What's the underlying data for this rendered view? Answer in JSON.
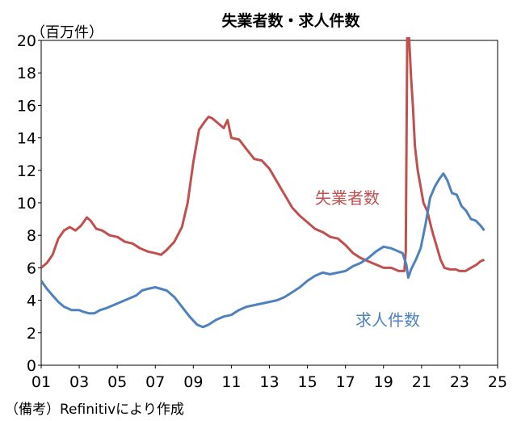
{
  "chart_data": {
    "type": "line",
    "title": "失業者数・求人件数",
    "y_unit": "（百万件）",
    "note": "（備考）Refinitivにより作成",
    "xlim": [
      2001,
      2025
    ],
    "ylim": [
      0,
      20
    ],
    "x_ticks": [
      {
        "value": 2001,
        "label": "01"
      },
      {
        "value": 2003,
        "label": "03"
      },
      {
        "value": 2005,
        "label": "05"
      },
      {
        "value": 2007,
        "label": "07"
      },
      {
        "value": 2009,
        "label": "09"
      },
      {
        "value": 2011,
        "label": "11"
      },
      {
        "value": 2013,
        "label": "13"
      },
      {
        "value": 2015,
        "label": "15"
      },
      {
        "value": 2017,
        "label": "17"
      },
      {
        "value": 2019,
        "label": "19"
      },
      {
        "value": 2021,
        "label": "21"
      },
      {
        "value": 2023,
        "label": "23"
      },
      {
        "value": 2025,
        "label": "25"
      }
    ],
    "y_ticks": [
      0,
      2,
      4,
      6,
      8,
      10,
      12,
      14,
      16,
      18,
      20
    ],
    "series": [
      {
        "name": "失業者数",
        "color": "#c0504d",
        "points": [
          [
            2001.0,
            6.0
          ],
          [
            2001.3,
            6.3
          ],
          [
            2001.6,
            6.8
          ],
          [
            2001.9,
            7.8
          ],
          [
            2002.2,
            8.3
          ],
          [
            2002.5,
            8.5
          ],
          [
            2002.8,
            8.3
          ],
          [
            2003.1,
            8.6
          ],
          [
            2003.4,
            9.1
          ],
          [
            2003.6,
            8.9
          ],
          [
            2003.9,
            8.4
          ],
          [
            2004.2,
            8.3
          ],
          [
            2004.6,
            8.0
          ],
          [
            2005.0,
            7.9
          ],
          [
            2005.4,
            7.6
          ],
          [
            2005.8,
            7.5
          ],
          [
            2006.2,
            7.2
          ],
          [
            2006.6,
            7.0
          ],
          [
            2007.0,
            6.9
          ],
          [
            2007.3,
            6.8
          ],
          [
            2007.6,
            7.1
          ],
          [
            2008.0,
            7.6
          ],
          [
            2008.4,
            8.5
          ],
          [
            2008.7,
            10.0
          ],
          [
            2009.0,
            12.5
          ],
          [
            2009.3,
            14.5
          ],
          [
            2009.6,
            15.0
          ],
          [
            2009.8,
            15.3
          ],
          [
            2010.0,
            15.2
          ],
          [
            2010.3,
            14.9
          ],
          [
            2010.6,
            14.6
          ],
          [
            2010.8,
            15.1
          ],
          [
            2011.0,
            14.0
          ],
          [
            2011.4,
            13.9
          ],
          [
            2011.8,
            13.3
          ],
          [
            2012.2,
            12.7
          ],
          [
            2012.6,
            12.6
          ],
          [
            2013.0,
            12.1
          ],
          [
            2013.4,
            11.3
          ],
          [
            2013.8,
            10.5
          ],
          [
            2014.2,
            9.7
          ],
          [
            2014.6,
            9.2
          ],
          [
            2015.0,
            8.8
          ],
          [
            2015.4,
            8.4
          ],
          [
            2015.8,
            8.2
          ],
          [
            2016.2,
            7.9
          ],
          [
            2016.6,
            7.8
          ],
          [
            2017.0,
            7.4
          ],
          [
            2017.4,
            6.9
          ],
          [
            2017.8,
            6.6
          ],
          [
            2018.2,
            6.4
          ],
          [
            2018.6,
            6.2
          ],
          [
            2019.0,
            6.0
          ],
          [
            2019.4,
            6.0
          ],
          [
            2019.8,
            5.8
          ],
          [
            2020.1,
            5.8
          ],
          [
            2020.17,
            7.0
          ],
          [
            2020.25,
            20.8
          ],
          [
            2020.33,
            20.5
          ],
          [
            2020.45,
            17.7
          ],
          [
            2020.55,
            15.9
          ],
          [
            2020.65,
            13.5
          ],
          [
            2020.8,
            12.0
          ],
          [
            2020.95,
            11.0
          ],
          [
            2021.1,
            10.0
          ],
          [
            2021.3,
            9.5
          ],
          [
            2021.55,
            8.3
          ],
          [
            2021.8,
            7.3
          ],
          [
            2022.0,
            6.5
          ],
          [
            2022.2,
            6.0
          ],
          [
            2022.5,
            5.9
          ],
          [
            2022.8,
            5.9
          ],
          [
            2023.0,
            5.8
          ],
          [
            2023.3,
            5.8
          ],
          [
            2023.6,
            6.0
          ],
          [
            2023.9,
            6.2
          ],
          [
            2024.1,
            6.4
          ],
          [
            2024.3,
            6.5
          ]
        ]
      },
      {
        "name": "求人件数",
        "color": "#4f81bd",
        "points": [
          [
            2001.0,
            5.2
          ],
          [
            2001.3,
            4.7
          ],
          [
            2001.6,
            4.3
          ],
          [
            2001.9,
            3.9
          ],
          [
            2002.2,
            3.6
          ],
          [
            2002.6,
            3.4
          ],
          [
            2003.0,
            3.4
          ],
          [
            2003.2,
            3.3
          ],
          [
            2003.5,
            3.2
          ],
          [
            2003.8,
            3.2
          ],
          [
            2004.1,
            3.4
          ],
          [
            2004.4,
            3.5
          ],
          [
            2004.8,
            3.7
          ],
          [
            2005.2,
            3.9
          ],
          [
            2005.6,
            4.1
          ],
          [
            2006.0,
            4.3
          ],
          [
            2006.3,
            4.6
          ],
          [
            2006.6,
            4.7
          ],
          [
            2007.0,
            4.8
          ],
          [
            2007.3,
            4.7
          ],
          [
            2007.6,
            4.6
          ],
          [
            2008.0,
            4.2
          ],
          [
            2008.4,
            3.6
          ],
          [
            2008.8,
            3.0
          ],
          [
            2009.2,
            2.5
          ],
          [
            2009.5,
            2.35
          ],
          [
            2009.8,
            2.5
          ],
          [
            2010.2,
            2.8
          ],
          [
            2010.6,
            3.0
          ],
          [
            2011.0,
            3.1
          ],
          [
            2011.4,
            3.4
          ],
          [
            2011.8,
            3.6
          ],
          [
            2012.2,
            3.7
          ],
          [
            2012.6,
            3.8
          ],
          [
            2013.0,
            3.9
          ],
          [
            2013.4,
            4.0
          ],
          [
            2013.8,
            4.2
          ],
          [
            2014.2,
            4.5
          ],
          [
            2014.6,
            4.8
          ],
          [
            2015.0,
            5.2
          ],
          [
            2015.4,
            5.5
          ],
          [
            2015.8,
            5.7
          ],
          [
            2016.2,
            5.6
          ],
          [
            2016.6,
            5.7
          ],
          [
            2017.0,
            5.8
          ],
          [
            2017.4,
            6.1
          ],
          [
            2017.8,
            6.3
          ],
          [
            2018.2,
            6.6
          ],
          [
            2018.6,
            7.0
          ],
          [
            2019.0,
            7.3
          ],
          [
            2019.4,
            7.2
          ],
          [
            2019.8,
            7.0
          ],
          [
            2020.0,
            6.9
          ],
          [
            2020.2,
            6.2
          ],
          [
            2020.3,
            5.4
          ],
          [
            2020.45,
            5.9
          ],
          [
            2020.7,
            6.5
          ],
          [
            2020.95,
            7.2
          ],
          [
            2021.2,
            8.6
          ],
          [
            2021.45,
            10.3
          ],
          [
            2021.7,
            11.0
          ],
          [
            2021.95,
            11.5
          ],
          [
            2022.15,
            11.8
          ],
          [
            2022.35,
            11.4
          ],
          [
            2022.6,
            10.6
          ],
          [
            2022.85,
            10.5
          ],
          [
            2023.1,
            9.8
          ],
          [
            2023.35,
            9.5
          ],
          [
            2023.6,
            9.0
          ],
          [
            2023.85,
            8.9
          ],
          [
            2024.1,
            8.6
          ],
          [
            2024.3,
            8.3
          ]
        ]
      }
    ]
  }
}
